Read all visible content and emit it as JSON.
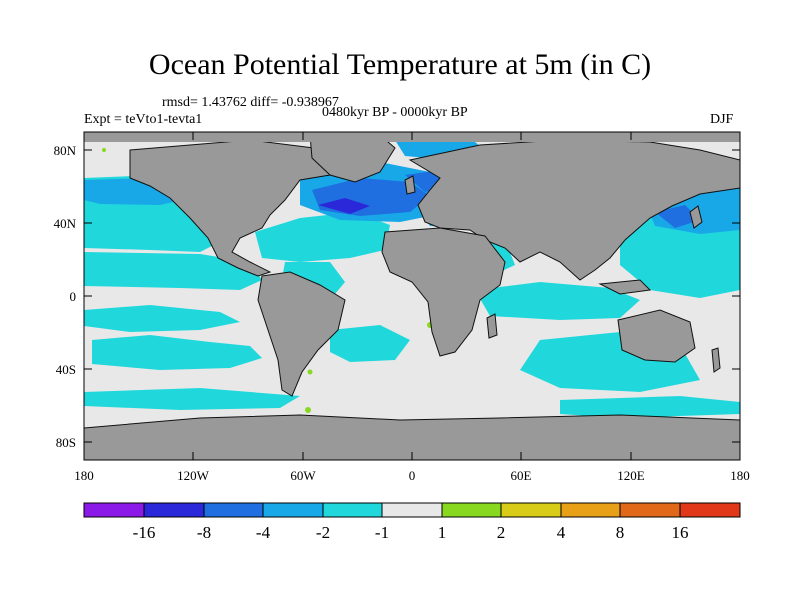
{
  "title": "Ocean Potential Temperature at 5m (in C)",
  "stats": "rmsd= 1.43762  diff= -0.938967",
  "expt": "Expt = teVto1-tevta1",
  "period": "0480kyr BP - 0000kyr BP",
  "season": "DJF",
  "y_ticks": [
    "80N",
    "40N",
    "0",
    "40S",
    "80S"
  ],
  "x_ticks": [
    "180",
    "120W",
    "60W",
    "0",
    "60E",
    "120E",
    "180"
  ],
  "colorbar": {
    "colors": [
      "#8b1ae8",
      "#2a28d8",
      "#1f6fe0",
      "#18a8e8",
      "#20d8dc",
      "#e8e8e8",
      "#88d820",
      "#d8cc18",
      "#e8a018",
      "#e06818",
      "#e03818"
    ],
    "labels": [
      "-16",
      "-8",
      "-4",
      "-2",
      "-1",
      "1",
      "2",
      "4",
      "8",
      "16"
    ]
  },
  "legend_colors": {
    "land": "#999999",
    "neutral": "#e8e8e8",
    "cyan": "#20d8dc",
    "blue": "#18a8e8",
    "deep_blue": "#1f6fe0",
    "navy": "#2a28d8",
    "green": "#88d820"
  }
}
